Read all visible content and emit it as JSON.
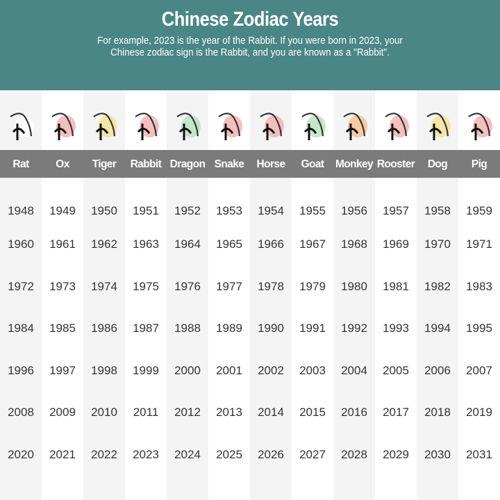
{
  "header": {
    "title": "Chinese Zodiac Years",
    "subtitle": "For example, 2023 is the year of the Rabbit. If you were born in 2023, your Chinese zodiac sign is the Rabbit, and you are known as a \"Rabbit\"."
  },
  "colors": {
    "header_bg": "#4b8686",
    "label_bar": "#7b7b7b",
    "alt_column": "#f4f4f4"
  },
  "animals": [
    {
      "name": "Rat",
      "icon": "rat-ink-icon",
      "accent": "#ffffff",
      "years": [
        1948,
        1960,
        1972,
        1984,
        1996,
        2008,
        2020
      ]
    },
    {
      "name": "Ox",
      "icon": "ox-ink-icon",
      "accent": "#f2b8b8",
      "years": [
        1949,
        1961,
        1973,
        1985,
        1997,
        2009,
        2021
      ]
    },
    {
      "name": "Tiger",
      "icon": "tiger-ink-icon",
      "accent": "#f3e6a0",
      "years": [
        1950,
        1962,
        1974,
        1986,
        1998,
        2010,
        2022
      ]
    },
    {
      "name": "Rabbit",
      "icon": "rabbit-ink-icon",
      "accent": "#f2b8b8",
      "years": [
        1951,
        1963,
        1975,
        1987,
        1999,
        2011,
        2023
      ]
    },
    {
      "name": "Dragon",
      "icon": "dragon-ink-icon",
      "accent": "#bfe3c8",
      "years": [
        1952,
        1964,
        1976,
        1988,
        2000,
        2012,
        2024
      ]
    },
    {
      "name": "Snake",
      "icon": "snake-ink-icon",
      "accent": "#f2b8b8",
      "years": [
        1953,
        1965,
        1977,
        1989,
        2001,
        2013,
        2025
      ]
    },
    {
      "name": "Horse",
      "icon": "horse-ink-icon",
      "accent": "#f2b8b8",
      "years": [
        1954,
        1966,
        1978,
        1990,
        2002,
        2014,
        2026
      ]
    },
    {
      "name": "Goat",
      "icon": "goat-ink-icon",
      "accent": "#bfe3c8",
      "years": [
        1955,
        1967,
        1979,
        1991,
        2003,
        2015,
        2027
      ]
    },
    {
      "name": "Monkey",
      "icon": "monkey-ink-icon",
      "accent": "#f6c79a",
      "years": [
        1956,
        1968,
        1980,
        1992,
        2004,
        2016,
        2028
      ]
    },
    {
      "name": "Rooster",
      "icon": "rooster-ink-icon",
      "accent": "#f2b8b8",
      "years": [
        1957,
        1969,
        1981,
        1993,
        2005,
        2017,
        2029
      ]
    },
    {
      "name": "Dog",
      "icon": "dog-ink-icon",
      "accent": "#f3e6a0",
      "years": [
        1958,
        1970,
        1982,
        1994,
        2006,
        2018,
        2030
      ]
    },
    {
      "name": "Pig",
      "icon": "pig-ink-icon",
      "accent": "#f2b8b8",
      "years": [
        1959,
        1971,
        1983,
        1995,
        2007,
        2019,
        2031
      ]
    }
  ]
}
